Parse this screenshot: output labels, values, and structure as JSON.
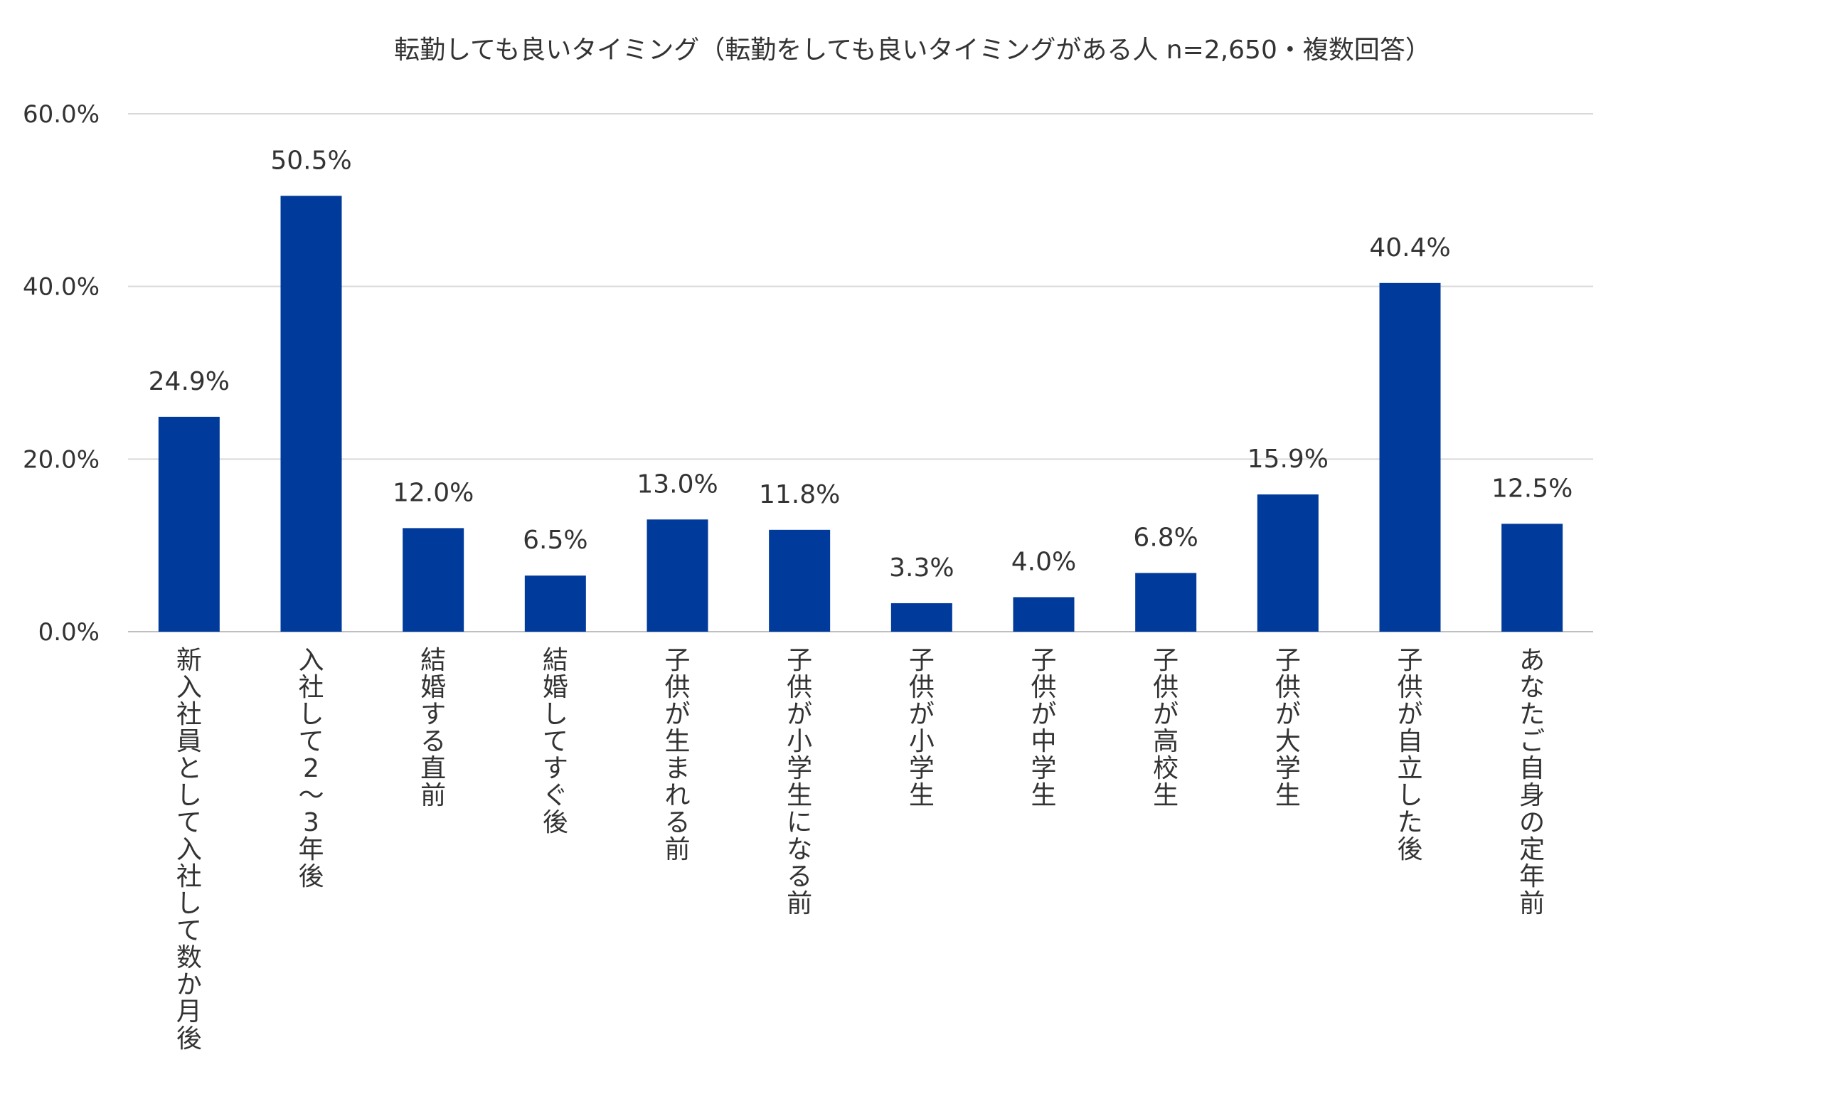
{
  "chart_data": {
    "type": "bar",
    "title": "転勤しても良いタイミング（転勤をしても良いタイミングがある人 n=2,650・複数回答）",
    "categories": [
      "新入社員として入社して数か月後",
      "入社して2～3年後",
      "結婚する直前",
      "結婚してすぐ後",
      "子供が生まれる前",
      "子供が小学生になる前",
      "子供が小学生",
      "子供が中学生",
      "子供が高校生",
      "子供が大学生",
      "子供が自立した後",
      "あなたご自身の定年前"
    ],
    "values": [
      24.9,
      50.5,
      12.0,
      6.5,
      13.0,
      11.8,
      3.3,
      4.0,
      6.8,
      15.9,
      40.4,
      12.5
    ],
    "value_labels": [
      "24.9%",
      "50.5%",
      "12.0%",
      "6.5%",
      "13.0%",
      "11.8%",
      "3.3%",
      "4.0%",
      "6.8%",
      "15.9%",
      "40.4%",
      "12.5%"
    ],
    "ylim": [
      0,
      60
    ],
    "yticks": [
      0,
      20,
      40,
      60
    ],
    "ytick_labels": [
      "0.0%",
      "20.0%",
      "40.0%",
      "60.0%"
    ],
    "xlabel": "",
    "ylabel": "",
    "grid": true,
    "legend": "none",
    "bar_color": "#003a9b"
  }
}
